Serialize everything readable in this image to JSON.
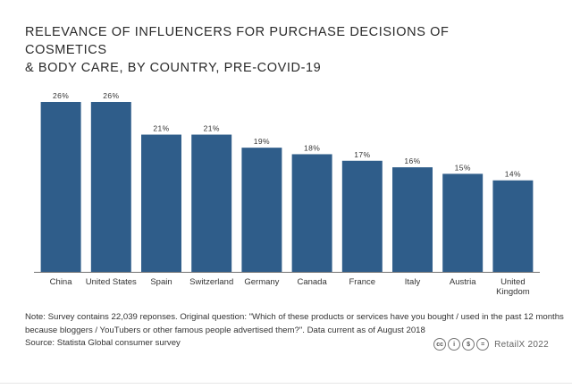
{
  "header": {
    "title_line1": "RELEVANCE OF INFLUENCERS FOR PURCHASE DECISIONS OF COSMETICS",
    "title_line2": "& BODY CARE, BY COUNTRY, PRE-COVID-19"
  },
  "chart_data": {
    "type": "bar",
    "title": "RELEVANCE OF INFLUENCERS FOR PURCHASE DECISIONS OF COSMETICS & BODY CARE, BY COUNTRY, PRE-COVID-19",
    "categories": [
      [
        "China"
      ],
      [
        "United States"
      ],
      [
        "Spain"
      ],
      [
        "Switzerland"
      ],
      [
        "Germany"
      ],
      [
        "Canada"
      ],
      [
        "France"
      ],
      [
        "Italy"
      ],
      [
        "Austria"
      ],
      [
        "United",
        "Kingdom"
      ]
    ],
    "values": [
      26,
      26,
      21,
      21,
      19,
      18,
      17,
      16,
      15,
      14
    ],
    "value_labels": [
      "26%",
      "26%",
      "21%",
      "21%",
      "19%",
      "18%",
      "17%",
      "16%",
      "15%",
      "14%"
    ],
    "xlabel": "",
    "ylabel": "",
    "ylim": [
      0,
      26
    ],
    "grid": false,
    "bar_color": "#2f5d8a"
  },
  "footer": {
    "note_line1": "Note: Survey contains 22,039 reponses. Original question: \"Which of these products or services have you bought / used in the past 12 months",
    "note_line2": "because bloggers / YouTubers or other famous people advertised them?\". Data current as of August 2018",
    "source": "Source: Statista Global consumer survey",
    "license_icons": [
      "cc",
      "i",
      "$",
      "="
    ],
    "credit": "RetailX 2022"
  }
}
